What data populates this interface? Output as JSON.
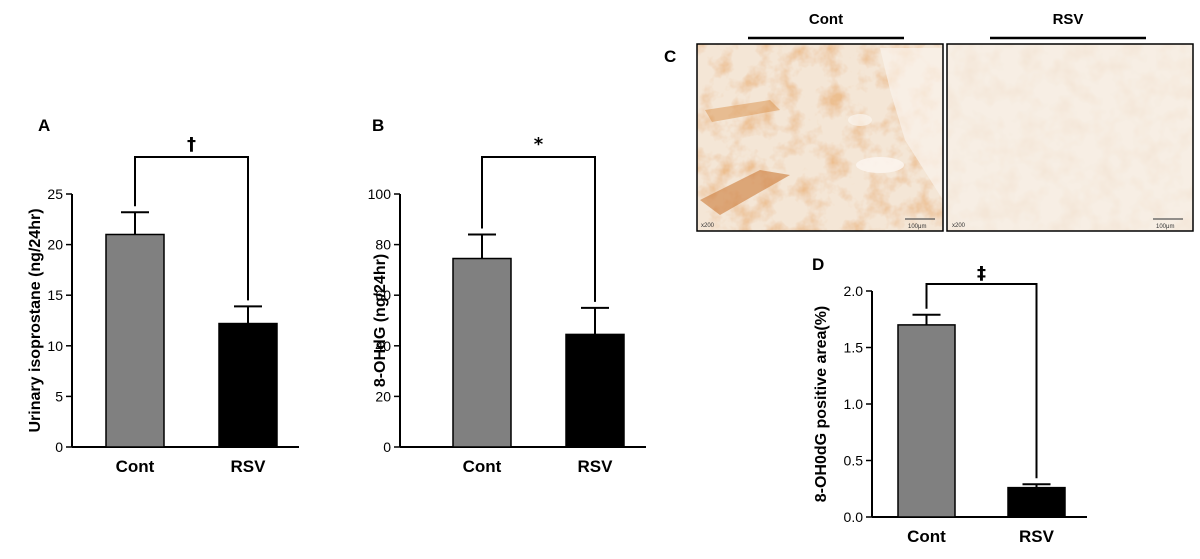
{
  "chart_data": [
    {
      "panel": "A",
      "type": "bar",
      "categories": [
        "Cont",
        "RSV"
      ],
      "values": [
        21.0,
        12.2
      ],
      "errors": [
        2.2,
        1.7
      ],
      "ylabel": "Urinary isoprostane (ng/24hr)",
      "ylim": [
        0,
        25
      ],
      "yticks": [
        0,
        5,
        10,
        15,
        20,
        25
      ],
      "ytick_labels": [
        "0",
        "5",
        "10",
        "15",
        "20",
        "25"
      ],
      "bar_colors": [
        "#808080",
        "#000000"
      ],
      "significance": "†"
    },
    {
      "panel": "B",
      "type": "bar",
      "categories": [
        "Cont",
        "RSV"
      ],
      "values": [
        74.5,
        44.5
      ],
      "errors": [
        9.5,
        10.5
      ],
      "ylabel": "8-OHdG (ng/24hr)",
      "ylim": [
        0,
        100
      ],
      "yticks": [
        0,
        20,
        40,
        60,
        80,
        100
      ],
      "ytick_labels": [
        "0",
        "20",
        "40",
        "60",
        "80",
        "100"
      ],
      "bar_colors": [
        "#808080",
        "#000000"
      ],
      "significance": "*"
    },
    {
      "panel": "D",
      "type": "bar",
      "categories": [
        "Cont",
        "RSV"
      ],
      "values": [
        1.7,
        0.26
      ],
      "errors": [
        0.09,
        0.03
      ],
      "ylabel": "8-OH0dG positive area(%)",
      "ylim": [
        0,
        2.0
      ],
      "yticks": [
        0,
        0.5,
        1.0,
        1.5,
        2.0
      ],
      "ytick_labels": [
        "0.0",
        "0.5",
        "1.0",
        "1.5",
        "2.0"
      ],
      "bar_colors": [
        "#808080",
        "#000000"
      ],
      "significance": "‡"
    }
  ],
  "panel_c": {
    "letter": "C",
    "images": [
      {
        "title": "Cont",
        "magnification": "x200",
        "scale": "100μm"
      },
      {
        "title": "RSV",
        "magnification": "x200",
        "scale": "100μm"
      }
    ]
  }
}
